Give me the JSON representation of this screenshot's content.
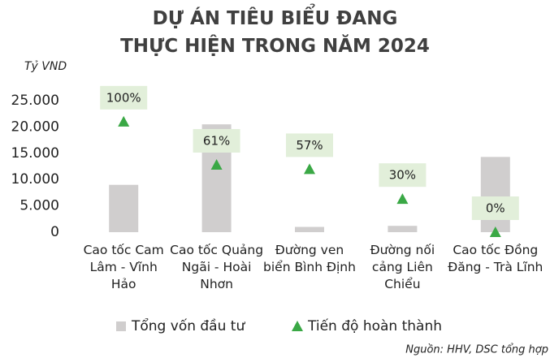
{
  "chart_data": {
    "type": "bar",
    "title": [
      "DỰ ÁN TIÊU BIỂU ĐANG",
      "THỰC HIỆN TRONG NĂM 2024"
    ],
    "ylabel": "Tỷ VND",
    "source": "Nguồn: HHV, DSC tổng hợp",
    "categories": [
      "Cao tốc Cam Lâm - Vĩnh Hảo",
      "Cao tốc Quảng Ngãi - Hoài Nhơn",
      "Đường ven biển Bình Định",
      "Đường nối cảng Liên Chiểu",
      "Cao tốc Đồng Đăng - Trà Lĩnh"
    ],
    "series": [
      {
        "name": "Tổng vốn đầu tư",
        "type": "bar",
        "color": "#d0cece",
        "values": [
          9000,
          20500,
          1000,
          1200,
          14300
        ]
      },
      {
        "name": "Tiến độ hoàn thành",
        "type": "scatter",
        "marker": "triangle",
        "axis": "y2",
        "color": "#3aa845",
        "values": [
          100,
          61,
          57,
          30,
          0
        ],
        "value_labels": [
          "100%",
          "61%",
          "57%",
          "30%",
          "0%"
        ]
      }
    ],
    "ylim": [
      0,
      25000
    ],
    "yticks": [
      0,
      {
        "value": 5000,
        "label": "5.000"
      },
      {
        "value": 10000,
        "label": "10.000"
      },
      {
        "value": 15000,
        "label": "15.000"
      },
      {
        "value": 20000,
        "label": "20.000"
      },
      {
        "value": 25000,
        "label": "25.000"
      }
    ],
    "y2lim": [
      0,
      119
    ],
    "legend": "bottom"
  }
}
